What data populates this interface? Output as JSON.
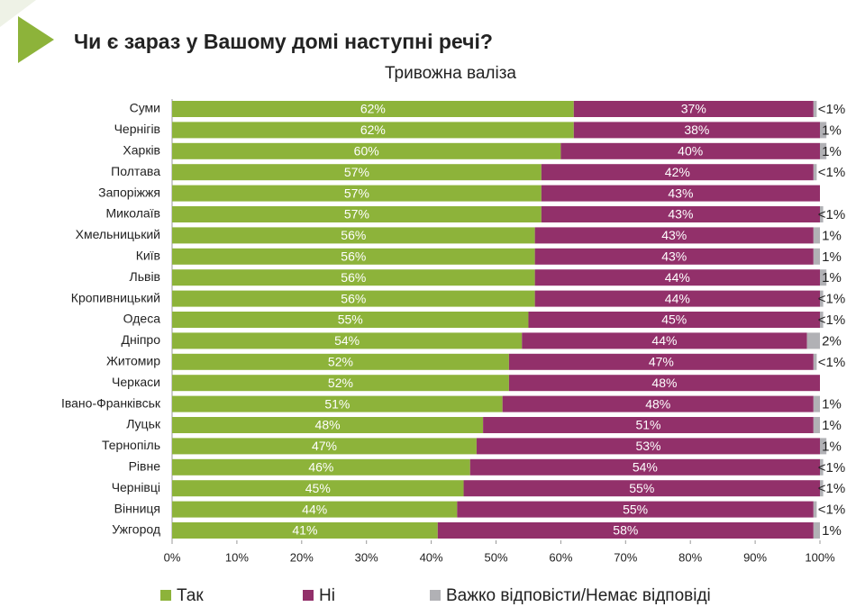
{
  "chart_data": {
    "type": "stacked-bar",
    "orientation": "horizontal",
    "title": "Чи є зараз у Вашому домі наступні речі?",
    "subtitle": "Тривожна валіза",
    "categories": [
      "Суми",
      "Чернігів",
      "Харків",
      "Полтава",
      "Запоріжжя",
      "Миколаїв",
      "Хмельницький",
      "Київ",
      "Львів",
      "Кропивницький",
      "Одеса",
      "Дніпро",
      "Житомир",
      "Черкаси",
      "Івано-Франківськ",
      "Луцьк",
      "Тернопіль",
      "Рівне",
      "Чернівці",
      "Вінниця",
      "Ужгород"
    ],
    "series": [
      {
        "name": "Так",
        "color": "#8db33a",
        "values": [
          62,
          62,
          60,
          57,
          57,
          57,
          56,
          56,
          56,
          56,
          55,
          54,
          52,
          52,
          51,
          48,
          47,
          46,
          45,
          44,
          41
        ],
        "value_labels": [
          "62%",
          "62%",
          "60%",
          "57%",
          "57%",
          "57%",
          "56%",
          "56%",
          "56%",
          "56%",
          "55%",
          "54%",
          "52%",
          "52%",
          "51%",
          "48%",
          "47%",
          "46%",
          "45%",
          "44%",
          "41%"
        ]
      },
      {
        "name": "Ні",
        "color": "#92306a",
        "values": [
          37,
          38,
          40,
          42,
          43,
          43,
          43,
          43,
          44,
          44,
          45,
          44,
          47,
          48,
          48,
          51,
          53,
          54,
          55,
          55,
          58
        ],
        "value_labels": [
          "37%",
          "38%",
          "40%",
          "42%",
          "43%",
          "43%",
          "43%",
          "43%",
          "44%",
          "44%",
          "45%",
          "44%",
          "47%",
          "48%",
          "48%",
          "51%",
          "53%",
          "54%",
          "55%",
          "55%",
          "58%"
        ]
      },
      {
        "name": "Важко відповісти/Немає відповіді",
        "color": "#b1b1b5",
        "values": [
          0.5,
          1,
          1,
          0.5,
          null,
          0.5,
          1,
          1,
          1,
          0.5,
          0.5,
          2,
          0.5,
          null,
          1,
          1,
          1,
          0.5,
          0.5,
          0.5,
          1
        ],
        "value_labels": [
          "<1%",
          "1%",
          "1%",
          "<1%",
          null,
          "<1%",
          "1%",
          "1%",
          "1%",
          "<1%",
          "<1%",
          "2%",
          "<1%",
          null,
          "1%",
          "1%",
          "1%",
          "<1%",
          "<1%",
          "<1%",
          "1%"
        ]
      }
    ],
    "xlim": [
      0,
      100
    ],
    "xticks": [
      {
        "value": 0,
        "label": "0%"
      },
      {
        "value": 10,
        "label": "10%"
      },
      {
        "value": 20,
        "label": "20%"
      },
      {
        "value": 30,
        "label": "30%"
      },
      {
        "value": 40,
        "label": "40%"
      },
      {
        "value": 50,
        "label": "50%"
      },
      {
        "value": 60,
        "label": "60%"
      },
      {
        "value": 70,
        "label": "70%"
      },
      {
        "value": 80,
        "label": "80%"
      },
      {
        "value": 90,
        "label": "90%"
      },
      {
        "value": 100,
        "label": "100%"
      }
    ],
    "grid": false
  }
}
